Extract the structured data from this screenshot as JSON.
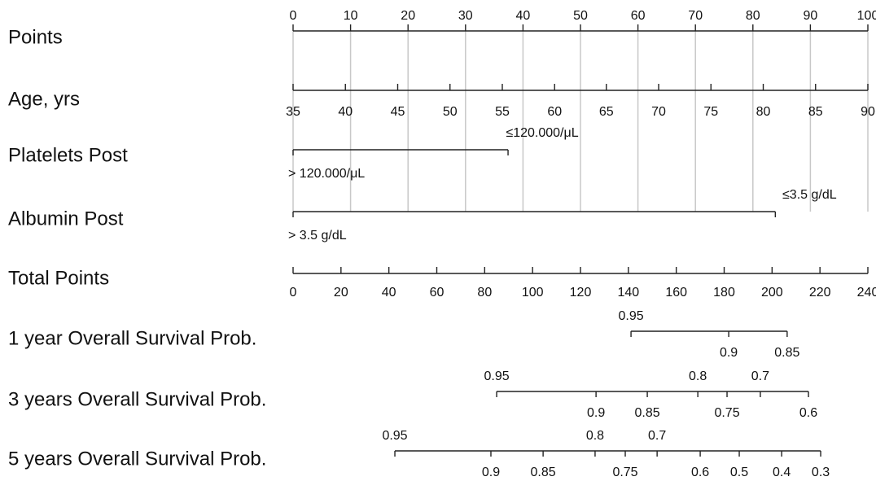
{
  "chart_data": {
    "type": "nomogram",
    "points_axis": {
      "label": "Points",
      "xlim": [
        0,
        100
      ],
      "xticks": [
        0,
        10,
        20,
        30,
        40,
        50,
        60,
        70,
        80,
        90,
        100
      ]
    },
    "variables": [
      {
        "label": "Age, yrs",
        "ticks": [
          35,
          40,
          45,
          50,
          55,
          60,
          65,
          70,
          75,
          80,
          85,
          90
        ],
        "points": [
          0,
          9.1,
          18.2,
          27.3,
          36.4,
          45.5,
          54.5,
          63.6,
          72.7,
          81.8,
          90.9,
          100
        ]
      },
      {
        "label": "Platelets Post",
        "ticks": [
          "> 120.000/μL",
          "≤120.000/μL"
        ],
        "points": [
          0,
          37.4
        ]
      },
      {
        "label": "Albumin Post",
        "ticks": [
          "> 3.5 g/dL",
          "≤3.5 g/dL"
        ],
        "points": [
          0,
          83.9
        ]
      }
    ],
    "total_points_axis": {
      "label": "Total Points",
      "xlim": [
        0,
        240
      ],
      "xticks": [
        0,
        20,
        40,
        60,
        80,
        100,
        120,
        140,
        160,
        180,
        200,
        220,
        240
      ]
    },
    "outcomes": [
      {
        "label": "1 year Overall Survival Prob.",
        "ticks": [
          0.95,
          0.9,
          0.85
        ],
        "points": [
          141.1,
          181.9,
          206.3
        ]
      },
      {
        "label": "3 years Overall Survival Prob.",
        "ticks": [
          0.95,
          0.9,
          0.85,
          0.8,
          0.75,
          0.7,
          0.6
        ],
        "points": [
          85,
          126.5,
          147.9,
          169,
          181.2,
          195.1,
          215.2
        ]
      },
      {
        "label": "5 years Overall Survival Prob.",
        "ticks": [
          0.95,
          0.9,
          0.85,
          0.8,
          0.75,
          0.7,
          0.6,
          0.5,
          0.4,
          0.3
        ],
        "points": [
          42.5,
          82.6,
          104.4,
          126.1,
          138.7,
          152,
          170,
          186.3,
          204,
          220.3
        ]
      }
    ]
  }
}
